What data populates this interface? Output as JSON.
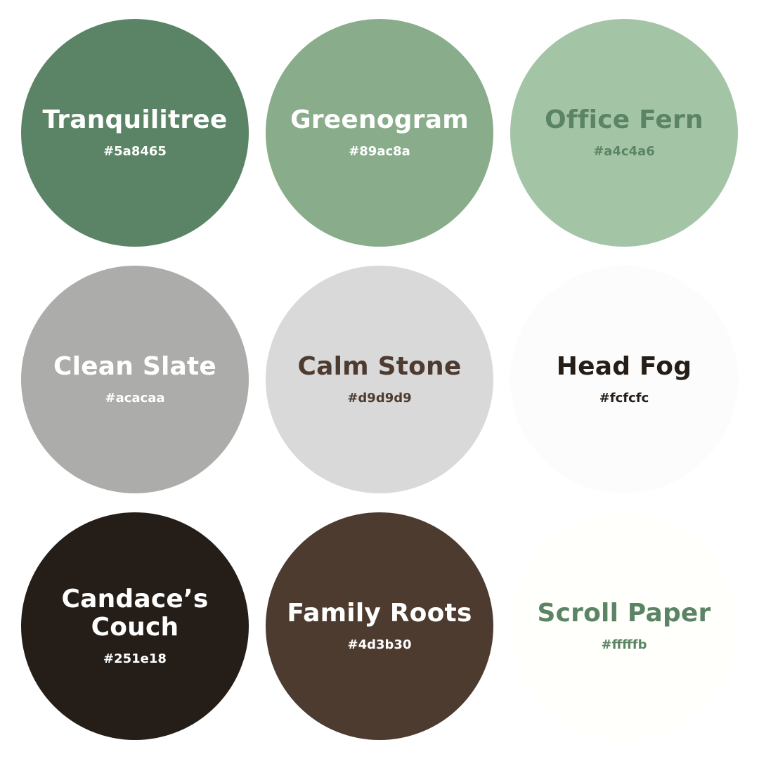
{
  "swatches": [
    {
      "name": "Tranquilitree",
      "hex": "#5a8465",
      "fill": "#5a8465",
      "text_color": "#ffffff"
    },
    {
      "name": "Greenogram",
      "hex": "#89ac8a",
      "fill": "#89ac8a",
      "text_color": "#ffffff"
    },
    {
      "name": "Office Fern",
      "hex": "#a4c4a6",
      "fill": "#a4c4a6",
      "text_color": "#5a8465"
    },
    {
      "name": "Clean Slate",
      "hex": "#acacaa",
      "fill": "#acacaa",
      "text_color": "#ffffff"
    },
    {
      "name": "Calm Stone",
      "hex": "#d9d9d9",
      "fill": "#d9d9d9",
      "text_color": "#4d3b30"
    },
    {
      "name": "Head Fog",
      "hex": "#fcfcfc",
      "fill": "#fcfcfc",
      "text_color": "#251e18"
    },
    {
      "name": "Candace’s\nCouch",
      "hex": "#251e18",
      "fill": "#251e18",
      "text_color": "#ffffff"
    },
    {
      "name": "Family Roots",
      "hex": "#4d3b30",
      "fill": "#4d3b30",
      "text_color": "#ffffff"
    },
    {
      "name": "Scroll Paper",
      "hex": "#fffffb",
      "fill": "#fffffb",
      "text_color": "#5a8465"
    }
  ]
}
